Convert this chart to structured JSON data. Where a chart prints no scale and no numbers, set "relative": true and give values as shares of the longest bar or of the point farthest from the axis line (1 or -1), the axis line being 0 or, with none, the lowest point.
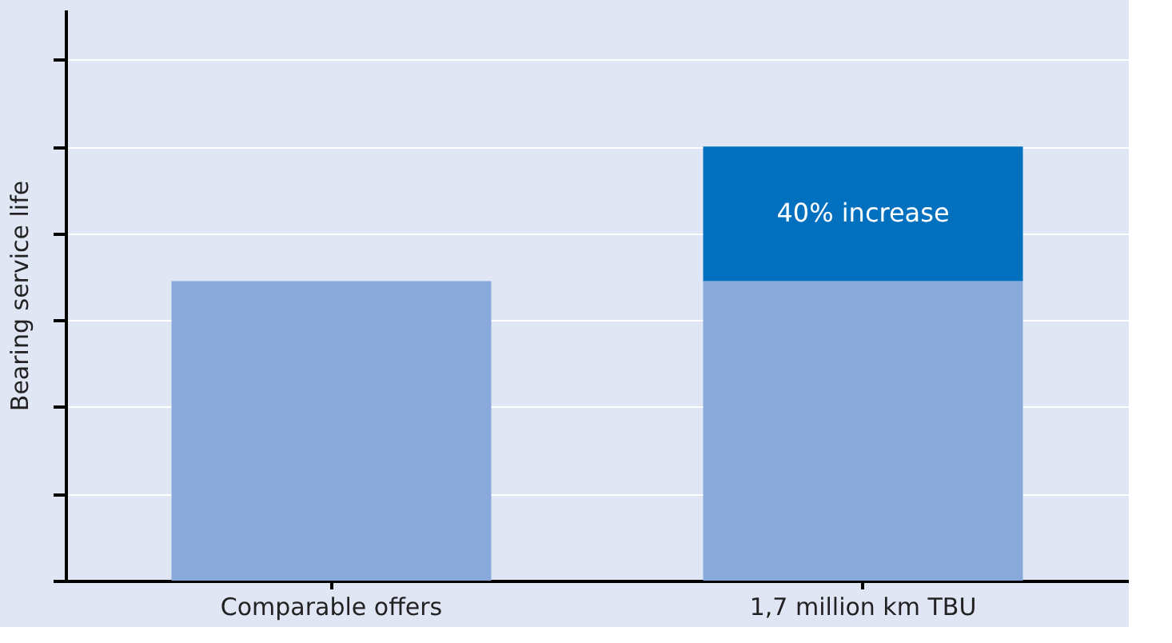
{
  "chart_data": {
    "type": "bar",
    "stacked": true,
    "relative": true,
    "ylabel": "Bearing service life",
    "categories": [
      "Comparable offers",
      "1,7 million km TBU"
    ],
    "series": [
      {
        "color": "#88a9d9",
        "values": [
          0.69,
          0.69
        ]
      },
      {
        "color": "#0070bf",
        "values": [
          null,
          0.31
        ]
      }
    ],
    "annotations": [
      "40% increase"
    ],
    "grid": "y"
  }
}
